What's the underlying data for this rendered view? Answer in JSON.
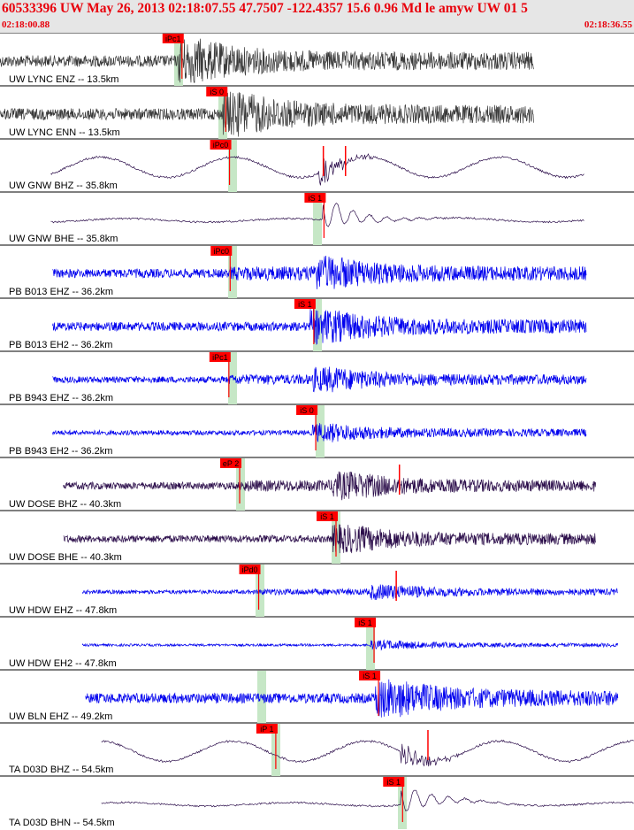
{
  "header": {
    "title": "60533396 UW May 26, 2013 02:18:07.55   47.7507 -122.4357 15.6 0.96 Md le amyw UW 01   5",
    "start_time": "02:18:00.88",
    "end_time": "02:18:36.55"
  },
  "colors": {
    "header_bg": "#e6e6e6",
    "title": "#e8000b",
    "pick_flag": "#ff0000",
    "pick_window": "#c6e7c6",
    "trace_gray": "#3a3a3a",
    "trace_purple": "#2b0d4a",
    "trace_blue": "#0000ee"
  },
  "traces": [
    {
      "label": "UW LYNC ENZ -- 13.5km",
      "color": "gray",
      "pick": "iPc1",
      "pick_frac": 0.287,
      "window_frac": 0.282,
      "start_frac": 0.0,
      "end_frac": 0.842,
      "style": "noise",
      "amp": 0.72
    },
    {
      "label": "UW LYNC ENN -- 13.5km",
      "color": "gray",
      "pick": "iS 0",
      "pick_frac": 0.356,
      "window_frac": 0.352,
      "start_frac": 0.0,
      "end_frac": 0.842,
      "style": "noise",
      "amp": 0.72
    },
    {
      "label": "UW GNW BHZ -- 35.8km",
      "color": "purple",
      "pick": "iPc0",
      "pick_frac": 0.362,
      "window_frac": 0.367,
      "start_frac": 0.08,
      "end_frac": 0.922,
      "style": "long",
      "amp": 0.8,
      "event_frac": 0.51,
      "flags": [
        0.51,
        0.545
      ]
    },
    {
      "label": "UW GNW BHE -- 35.8km",
      "color": "purple",
      "pick": "iS 1",
      "pick_frac": 0.511,
      "window_frac": 0.5,
      "start_frac": 0.08,
      "end_frac": 0.922,
      "style": "smooth",
      "amp": 0.6,
      "event_frac": 0.511
    },
    {
      "label": "PB B013 EHZ -- 36.2km",
      "color": "blue",
      "pick": "iPc0",
      "pick_frac": 0.363,
      "window_frac": 0.367,
      "start_frac": 0.083,
      "end_frac": 0.925,
      "style": "noise",
      "amp": 0.55,
      "event_frac": 0.5
    },
    {
      "label": "PB B013 EH2 -- 36.2km",
      "color": "blue",
      "pick": "iS 1",
      "pick_frac": 0.495,
      "window_frac": 0.5,
      "start_frac": 0.083,
      "end_frac": 0.925,
      "style": "noise",
      "amp": 0.55,
      "event_frac": 0.495
    },
    {
      "label": "PB B943 EHZ -- 36.2km",
      "color": "blue",
      "pick": "iPc1",
      "pick_frac": 0.361,
      "window_frac": 0.367,
      "start_frac": 0.083,
      "end_frac": 0.925,
      "style": "noise",
      "amp": 0.4,
      "event_frac": 0.5
    },
    {
      "label": "PB B943 EH2 -- 36.2km",
      "color": "blue",
      "pick": "iS 0",
      "pick_frac": 0.498,
      "window_frac": 0.505,
      "start_frac": 0.083,
      "end_frac": 0.925,
      "style": "noise",
      "amp": 0.3,
      "event_frac": 0.498
    },
    {
      "label": "UW DOSE BHZ -- 40.3km",
      "color": "purple",
      "pick": "eP 2",
      "pick_frac": 0.378,
      "window_frac": 0.38,
      "start_frac": 0.1,
      "end_frac": 0.94,
      "style": "noise",
      "amp": 0.45,
      "event_frac": 0.53,
      "flags": [
        0.63
      ]
    },
    {
      "label": "UW DOSE BHE -- 40.3km",
      "color": "purple",
      "pick": "iS 1",
      "pick_frac": 0.53,
      "window_frac": 0.53,
      "start_frac": 0.1,
      "end_frac": 0.94,
      "style": "noise",
      "amp": 0.45,
      "event_frac": 0.53
    },
    {
      "label": "UW HDW EHZ -- 47.8km",
      "color": "blue",
      "pick": "iPd0",
      "pick_frac": 0.408,
      "window_frac": 0.41,
      "start_frac": 0.13,
      "end_frac": 0.975,
      "style": "noise",
      "amp": 0.25,
      "event_frac": 0.59,
      "flags": [
        0.625
      ]
    },
    {
      "label": "UW HDW EH2 -- 47.8km",
      "color": "blue",
      "pick": "iS 1",
      "pick_frac": 0.59,
      "window_frac": 0.585,
      "start_frac": 0.13,
      "end_frac": 0.975,
      "style": "noise",
      "amp": 0.15,
      "event_frac": 0.59
    },
    {
      "label": "UW BLN EHZ -- 49.2km",
      "color": "blue",
      "pick": "iS 1",
      "pick_frac": 0.597,
      "window_frac": 0.413,
      "start_frac": 0.135,
      "end_frac": 0.975,
      "style": "dense",
      "amp": 0.62,
      "event_frac": 0.597
    },
    {
      "label": "TA D03D BHZ -- 54.5km",
      "color": "purple",
      "pick": "iP 1",
      "pick_frac": 0.435,
      "window_frac": 0.435,
      "start_frac": 0.16,
      "end_frac": 1.0,
      "style": "long",
      "amp": 0.8,
      "event_frac": 0.64,
      "flags": [
        0.675
      ]
    },
    {
      "label": "TA D03D BHN -- 54.5km",
      "color": "purple",
      "pick": "iS 1",
      "pick_frac": 0.635,
      "window_frac": 0.635,
      "start_frac": 0.16,
      "end_frac": 1.0,
      "style": "smooth",
      "amp": 0.5,
      "event_frac": 0.635
    }
  ]
}
